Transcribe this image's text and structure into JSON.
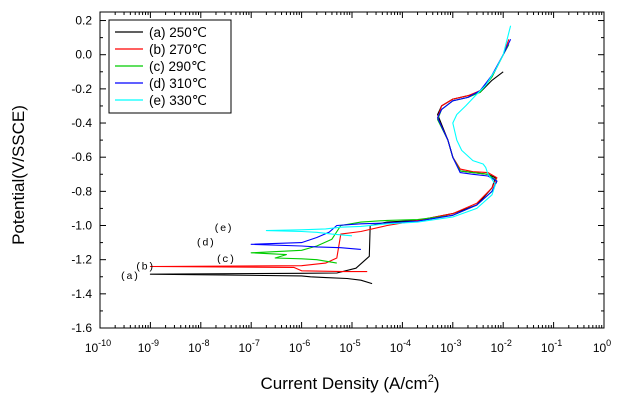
{
  "chart_data": {
    "type": "line",
    "title": "",
    "xlabel": "Current Density (A/cm",
    "xlabel_sup": "2",
    "xlabel_end": ")",
    "ylabel": "Potential(V/SSCE)",
    "xscale": "log",
    "xlim": [
      1e-10,
      1
    ],
    "ylim": [
      -1.6,
      0.25
    ],
    "grid": false,
    "legend_position": "top-left",
    "x_ticks": [
      {
        "base": "10",
        "exp": "-10",
        "value": 1e-10
      },
      {
        "base": "10",
        "exp": "-9",
        "value": 1e-09
      },
      {
        "base": "10",
        "exp": "-8",
        "value": 1e-08
      },
      {
        "base": "10",
        "exp": "-7",
        "value": 1e-07
      },
      {
        "base": "10",
        "exp": "-6",
        "value": 1e-06
      },
      {
        "base": "10",
        "exp": "-5",
        "value": 1e-05
      },
      {
        "base": "10",
        "exp": "-4",
        "value": 0.0001
      },
      {
        "base": "10",
        "exp": "-3",
        "value": 0.001
      },
      {
        "base": "10",
        "exp": "-2",
        "value": 0.01
      },
      {
        "base": "10",
        "exp": "-1",
        "value": 0.1
      },
      {
        "base": "10",
        "exp": "0",
        "value": 1
      }
    ],
    "y_ticks": [
      {
        "label": "0.2",
        "value": 0.2
      },
      {
        "label": "0.0",
        "value": 0.0
      },
      {
        "label": "-0.2",
        "value": -0.2
      },
      {
        "label": "-0.4",
        "value": -0.4
      },
      {
        "label": "-0.6",
        "value": -0.6
      },
      {
        "label": "-0.8",
        "value": -0.8
      },
      {
        "label": "-1.0",
        "value": -1.0
      },
      {
        "label": "-1.2",
        "value": -1.2
      },
      {
        "label": "-1.4",
        "value": -1.4
      },
      {
        "label": "-1.6",
        "value": -1.6
      }
    ],
    "series": [
      {
        "name": "(a) 250℃",
        "label": "(a)",
        "label_x": 2.5e-10,
        "label_y": -1.29,
        "color": "#000000",
        "points": [
          [
            2.5e-05,
            -1.34
          ],
          [
            1.5e-05,
            -1.32
          ],
          [
            8e-06,
            -1.31
          ],
          [
            3e-06,
            -1.305
          ],
          [
            1.5e-06,
            -1.3
          ],
          [
            1e-06,
            -1.295
          ],
          [
            1e-09,
            -1.285
          ],
          [
            1e-06,
            -1.28
          ],
          [
            5e-06,
            -1.278
          ],
          [
            1.2e-05,
            -1.25
          ],
          [
            2.2e-05,
            -1.18
          ],
          [
            2.3e-05,
            -1.0
          ],
          [
            5e-05,
            -0.98
          ],
          [
            0.0002,
            -0.97
          ],
          [
            0.001,
            -0.93
          ],
          [
            0.003,
            -0.88
          ],
          [
            0.006,
            -0.78
          ],
          [
            0.007,
            -0.72
          ],
          [
            0.005,
            -0.7
          ],
          [
            0.0025,
            -0.69
          ],
          [
            0.0014,
            -0.68
          ],
          [
            0.001,
            -0.6
          ],
          [
            0.0008,
            -0.5
          ],
          [
            0.0005,
            -0.35
          ],
          [
            0.0006,
            -0.3
          ],
          [
            0.001,
            -0.26
          ],
          [
            0.002,
            -0.24
          ],
          [
            0.0035,
            -0.22
          ],
          [
            0.006,
            -0.15
          ],
          [
            0.01,
            -0.1
          ]
        ]
      },
      {
        "name": "(b) 270℃",
        "label": "(b)",
        "label_x": 5e-10,
        "label_y": -1.235,
        "color": "#ff0000",
        "points": [
          [
            2e-05,
            -1.27
          ],
          [
            7e-06,
            -1.27
          ],
          [
            1e-06,
            -1.265
          ],
          [
            7e-07,
            -1.245
          ],
          [
            1e-09,
            -1.24
          ],
          [
            1e-06,
            -1.235
          ],
          [
            3e-06,
            -1.22
          ],
          [
            5e-06,
            -1.19
          ],
          [
            6e-06,
            -1.05
          ],
          [
            1.5e-05,
            -1.035
          ],
          [
            5e-05,
            -1.0
          ],
          [
            0.0002,
            -0.97
          ],
          [
            0.001,
            -0.93
          ],
          [
            0.003,
            -0.87
          ],
          [
            0.006,
            -0.78
          ],
          [
            0.0075,
            -0.72
          ],
          [
            0.005,
            -0.69
          ],
          [
            0.0025,
            -0.685
          ],
          [
            0.0014,
            -0.67
          ],
          [
            0.001,
            -0.6
          ],
          [
            0.0008,
            -0.5
          ],
          [
            0.0005,
            -0.37
          ],
          [
            0.0006,
            -0.3
          ],
          [
            0.001,
            -0.26
          ],
          [
            0.002,
            -0.24
          ],
          [
            0.0035,
            -0.21
          ],
          [
            0.006,
            -0.13
          ],
          [
            0.01,
            0.0
          ],
          [
            0.013,
            0.09
          ]
        ]
      },
      {
        "name": "(c) 290℃",
        "label": "(c)",
        "label_x": 2e-08,
        "label_y": -1.19,
        "color": "#00cc00",
        "points": [
          [
            5e-06,
            -1.22
          ],
          [
            2e-06,
            -1.2
          ],
          [
            1e-06,
            -1.195
          ],
          [
            3e-07,
            -1.19
          ],
          [
            5e-07,
            -1.17
          ],
          [
            1e-07,
            -1.16
          ],
          [
            1e-06,
            -1.145
          ],
          [
            2e-06,
            -1.12
          ],
          [
            4e-06,
            -1.08
          ],
          [
            6e-06,
            -1.0
          ],
          [
            1.5e-05,
            -0.98
          ],
          [
            5e-05,
            -0.97
          ],
          [
            0.0002,
            -0.965
          ],
          [
            0.001,
            -0.94
          ],
          [
            0.003,
            -0.88
          ],
          [
            0.006,
            -0.8
          ],
          [
            0.0075,
            -0.74
          ],
          [
            0.005,
            -0.7
          ],
          [
            0.0025,
            -0.69
          ],
          [
            0.0014,
            -0.68
          ],
          [
            0.001,
            -0.6
          ],
          [
            0.0008,
            -0.5
          ],
          [
            0.0005,
            -0.38
          ],
          [
            0.0006,
            -0.32
          ],
          [
            0.001,
            -0.27
          ],
          [
            0.002,
            -0.25
          ],
          [
            0.0035,
            -0.22
          ],
          [
            0.006,
            -0.13
          ],
          [
            0.01,
            0.0
          ],
          [
            0.013,
            0.06
          ]
        ]
      },
      {
        "name": "(d) 310℃",
        "label": "(d)",
        "label_x": 8e-09,
        "label_y": -1.095,
        "color": "#0000ff",
        "points": [
          [
            1.5e-05,
            -1.14
          ],
          [
            6e-06,
            -1.13
          ],
          [
            2e-06,
            -1.125
          ],
          [
            1e-06,
            -1.12
          ],
          [
            1e-07,
            -1.11
          ],
          [
            1e-06,
            -1.1
          ],
          [
            2e-06,
            -1.07
          ],
          [
            3.5e-06,
            -1.04
          ],
          [
            5e-06,
            -1.0
          ],
          [
            1.5e-05,
            -0.99
          ],
          [
            5e-05,
            -0.985
          ],
          [
            0.0002,
            -0.975
          ],
          [
            0.001,
            -0.94
          ],
          [
            0.003,
            -0.88
          ],
          [
            0.006,
            -0.8
          ],
          [
            0.0075,
            -0.74
          ],
          [
            0.005,
            -0.71
          ],
          [
            0.0025,
            -0.7
          ],
          [
            0.0014,
            -0.69
          ],
          [
            0.001,
            -0.6
          ],
          [
            0.0008,
            -0.5
          ],
          [
            0.0005,
            -0.37
          ],
          [
            0.0006,
            -0.32
          ],
          [
            0.001,
            -0.27
          ],
          [
            0.002,
            -0.25
          ],
          [
            0.0035,
            -0.21
          ],
          [
            0.006,
            -0.12
          ],
          [
            0.01,
            0.0
          ],
          [
            0.014,
            0.09
          ]
        ]
      },
      {
        "name": "(e) 330℃",
        "label": "(e)",
        "label_x": 1.8e-08,
        "label_y": -1.01,
        "color": "#00ffff",
        "points": [
          [
            1e-05,
            -1.06
          ],
          [
            4e-06,
            -1.05
          ],
          [
            2e-06,
            -1.04
          ],
          [
            1e-06,
            -1.035
          ],
          [
            2e-07,
            -1.03
          ],
          [
            1e-06,
            -1.025
          ],
          [
            3e-06,
            -1.02
          ],
          [
            6e-06,
            -1.01
          ],
          [
            1.5e-05,
            -1.005
          ],
          [
            5e-05,
            -0.99
          ],
          [
            0.0002,
            -0.98
          ],
          [
            0.001,
            -0.95
          ],
          [
            0.003,
            -0.9
          ],
          [
            0.006,
            -0.82
          ],
          [
            0.007,
            -0.76
          ],
          [
            0.006,
            -0.73
          ],
          [
            0.005,
            -0.7
          ],
          [
            0.0045,
            -0.66
          ],
          [
            0.004,
            -0.64
          ],
          [
            0.0025,
            -0.62
          ],
          [
            0.0015,
            -0.56
          ],
          [
            0.0012,
            -0.5
          ],
          [
            0.001,
            -0.4
          ],
          [
            0.0012,
            -0.35
          ],
          [
            0.0018,
            -0.3
          ],
          [
            0.0028,
            -0.24
          ],
          [
            0.0045,
            -0.18
          ],
          [
            0.007,
            -0.09
          ],
          [
            0.01,
            0.0
          ],
          [
            0.014,
            0.17
          ]
        ]
      }
    ]
  }
}
